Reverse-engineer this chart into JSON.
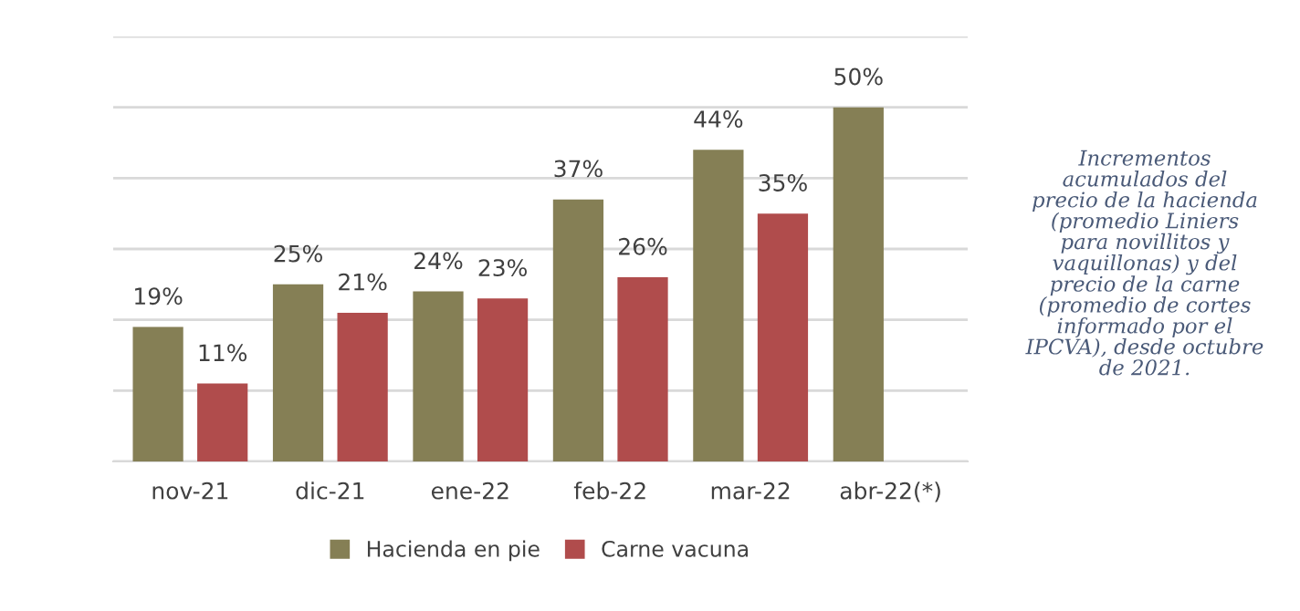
{
  "chart_data": {
    "type": "bar",
    "categories": [
      "nov-21",
      "dic-21",
      "ene-22",
      "feb-22",
      "mar-22",
      "abr-22(*)"
    ],
    "series": [
      {
        "name": "Hacienda en pie",
        "color": "#857f55",
        "values": [
          19,
          25,
          24,
          37,
          44,
          50
        ],
        "value_labels": [
          "19%",
          "25%",
          "24%",
          "37%",
          "44%",
          "50%"
        ]
      },
      {
        "name": "Carne vacuna",
        "color": "#b04c4c",
        "values": [
          11,
          21,
          23,
          26,
          35,
          null
        ],
        "value_labels": [
          "11%",
          "21%",
          "23%",
          "26%",
          "35%",
          null
        ]
      }
    ],
    "ylim": [
      0,
      60
    ],
    "yticks": [
      {
        "value": 0,
        "label": null
      },
      {
        "value": 10,
        "label": null
      },
      {
        "value": 20,
        "label": null
      },
      {
        "value": 30,
        "label": null
      },
      {
        "value": 40,
        "label": null
      },
      {
        "value": 50,
        "label": null
      },
      {
        "value": 60,
        "label": null
      }
    ],
    "tick_labels": "x",
    "grid": "y",
    "legend": "bottom",
    "annotations": [
      "Incrementos\nacumulados del\nprecio de la hacienda\n(promedio Liniers\npara novillitos y\nvaquillonas) y del\nprecio de la carne\n(promedio de cortes\ninformado por el\nIPCVA), desde octubre\nde 2021."
    ]
  }
}
